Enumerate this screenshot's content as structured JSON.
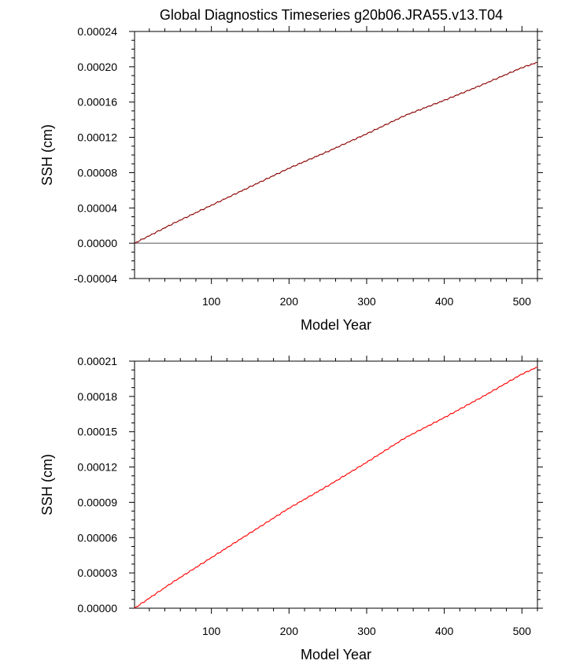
{
  "title": "Global Diagnostics Timeseries g20b06.JRA55.v13.T04",
  "colors": {
    "series_top": "#8b0000",
    "series_bottom": "#ff0000",
    "zero_line": "#555555"
  },
  "chart_data": [
    {
      "type": "line",
      "xlabel": "Model Year",
      "ylabel": "SSH (cm)",
      "xlim": [
        1,
        520
      ],
      "ylim": [
        -4e-05,
        0.00024
      ],
      "x_ticks": [
        100,
        200,
        300,
        400,
        500
      ],
      "x_tick_labels": [
        "100",
        "200",
        "300",
        "400",
        "500"
      ],
      "y_ticks": [
        -4e-05,
        0,
        4e-05,
        8e-05,
        0.00012,
        0.00016,
        0.0002,
        0.00024
      ],
      "y_tick_labels": [
        "-0.00004",
        "0.00000",
        "0.00004",
        "0.00008",
        "0.00012",
        "0.00016",
        "0.00020",
        "0.00024"
      ],
      "reference_line_y": 0,
      "series": [
        {
          "x": [
            1,
            50,
            100,
            150,
            200,
            250,
            300,
            350,
            400,
            450,
            500,
            520
          ],
          "values": [
            0.0,
            2.2e-05,
            4.3e-05,
            6.4e-05,
            8.5e-05,
            0.000104,
            0.000124,
            0.000145,
            0.000162,
            0.00018,
            0.000199,
            0.000205
          ]
        }
      ]
    },
    {
      "type": "line",
      "xlabel": "Model Year",
      "ylabel": "SSH (cm)",
      "xlim": [
        1,
        520
      ],
      "ylim": [
        0,
        0.00021
      ],
      "x_ticks": [
        100,
        200,
        300,
        400,
        500
      ],
      "x_tick_labels": [
        "100",
        "200",
        "300",
        "400",
        "500"
      ],
      "y_ticks": [
        0,
        3e-05,
        6e-05,
        9e-05,
        0.00012,
        0.00015,
        0.00018,
        0.00021
      ],
      "y_tick_labels": [
        "0.00000",
        "0.00003",
        "0.00006",
        "0.00009",
        "0.00012",
        "0.00015",
        "0.00018",
        "0.00021"
      ],
      "series": [
        {
          "x": [
            1,
            50,
            100,
            150,
            200,
            250,
            300,
            350,
            400,
            450,
            500,
            520
          ],
          "values": [
            0.0,
            2.2e-05,
            4.3e-05,
            6.4e-05,
            8.5e-05,
            0.000104,
            0.000124,
            0.000145,
            0.000162,
            0.00018,
            0.000199,
            0.000205
          ]
        }
      ]
    }
  ]
}
